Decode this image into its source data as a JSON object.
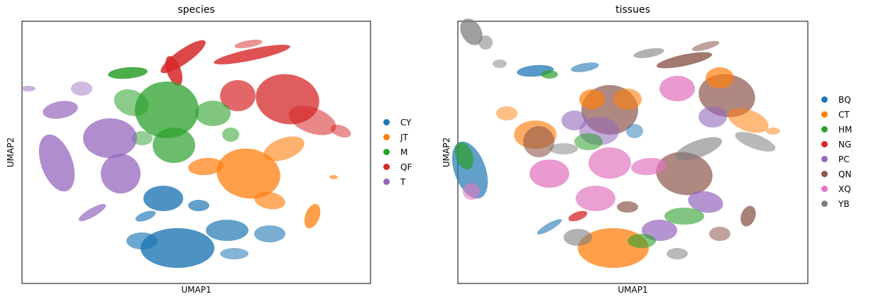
{
  "chart_data": [
    {
      "type": "scatter",
      "title": "species",
      "xlabel": "UMAP1",
      "ylabel": "UMAP2",
      "grid": false,
      "legend_placement": "right",
      "legend": [
        {
          "name": "CY",
          "color": "#1f77b4"
        },
        {
          "name": "JT",
          "color": "#ff7f0e"
        },
        {
          "name": "M",
          "color": "#2ca02c"
        },
        {
          "name": "QF",
          "color": "#d62728"
        },
        {
          "name": "T",
          "color": "#9467bd"
        }
      ]
    },
    {
      "type": "scatter",
      "title": "tissues",
      "xlabel": "UMAP1",
      "ylabel": "UMAP2",
      "grid": false,
      "legend_placement": "right",
      "legend": [
        {
          "name": "BQ",
          "color": "#1f77b4"
        },
        {
          "name": "CT",
          "color": "#ff7f0e"
        },
        {
          "name": "HM",
          "color": "#2ca02c"
        },
        {
          "name": "NG",
          "color": "#d62728"
        },
        {
          "name": "PC",
          "color": "#9467bd"
        },
        {
          "name": "QN",
          "color": "#8c564b"
        },
        {
          "name": "XQ",
          "color": "#e377c2"
        },
        {
          "name": "YB",
          "color": "#7f7f7f"
        }
      ]
    }
  ]
}
